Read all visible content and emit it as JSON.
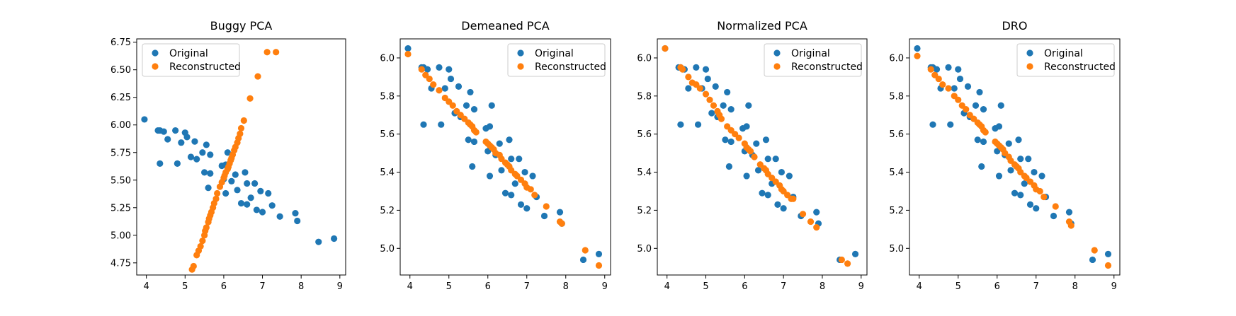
{
  "chart_data": [
    {
      "type": "scatter",
      "title": "Buggy PCA",
      "xlim": [
        3.75,
        9.15
      ],
      "ylim": [
        4.64,
        6.78
      ],
      "xticks": [
        4,
        5,
        6,
        7,
        8,
        9
      ],
      "yticks": [
        4.75,
        5.0,
        5.25,
        5.5,
        5.75,
        6.0,
        6.25,
        6.5,
        6.75
      ],
      "ytick_labels": [
        "4.75",
        "5.00",
        "5.25",
        "5.50",
        "5.75",
        "6.00",
        "6.25",
        "6.50",
        "6.75"
      ],
      "legend_position": "top-left",
      "series": [
        {
          "name": "Original",
          "color": "#1f77b4",
          "x": [
            3.95,
            4.3,
            4.35,
            4.45,
            4.55,
            4.75,
            4.35,
            4.8,
            4.9,
            5.05,
            5.0,
            5.25,
            5.45,
            5.55,
            5.15,
            5.3,
            5.65,
            5.5,
            5.6,
            5.65,
            5.95,
            6.05,
            6.1,
            6.0,
            6.2,
            6.3,
            6.35,
            6.45,
            6.55,
            6.6,
            6.6,
            6.7,
            6.8,
            6.85,
            6.95,
            7.0,
            7.15,
            7.25,
            7.45,
            7.85,
            7.9,
            8.45,
            8.85,
            6.05
          ],
          "y": [
            6.05,
            5.95,
            5.95,
            5.94,
            5.87,
            5.95,
            5.65,
            5.65,
            5.84,
            5.89,
            5.93,
            5.85,
            5.75,
            5.82,
            5.71,
            5.69,
            5.73,
            5.57,
            5.43,
            5.56,
            5.63,
            5.64,
            5.75,
            5.51,
            5.49,
            5.55,
            5.41,
            5.29,
            5.57,
            5.47,
            5.28,
            5.34,
            5.47,
            5.23,
            5.4,
            5.21,
            5.38,
            5.27,
            5.17,
            5.2,
            5.13,
            4.94,
            4.97,
            5.38
          ]
        },
        {
          "name": "Reconstructed",
          "color": "#ff7f0e",
          "x": [
            5.18,
            5.22,
            5.3,
            5.35,
            5.4,
            5.45,
            5.5,
            5.52,
            5.55,
            5.6,
            5.62,
            5.65,
            5.68,
            5.72,
            5.75,
            5.8,
            5.83,
            5.9,
            5.95,
            6.0,
            6.02,
            6.05,
            6.1,
            6.12,
            6.15,
            6.18,
            6.2,
            6.23,
            6.27,
            6.3,
            6.35,
            6.38,
            6.42,
            6.45,
            6.52,
            6.68,
            6.88,
            7.12,
            7.35
          ],
          "y": [
            4.69,
            4.72,
            4.82,
            4.86,
            4.9,
            4.95,
            5.0,
            5.04,
            5.07,
            5.12,
            5.15,
            5.18,
            5.21,
            5.25,
            5.29,
            5.33,
            5.38,
            5.44,
            5.48,
            5.52,
            5.54,
            5.57,
            5.6,
            5.62,
            5.65,
            5.68,
            5.7,
            5.73,
            5.77,
            5.8,
            5.84,
            5.88,
            5.92,
            5.97,
            6.04,
            6.24,
            6.44,
            6.66,
            6.66
          ]
        }
      ]
    },
    {
      "type": "scatter",
      "title": "Demeaned PCA",
      "xlim": [
        3.75,
        9.15
      ],
      "ylim": [
        4.86,
        6.1
      ],
      "xticks": [
        4,
        5,
        6,
        7,
        8,
        9
      ],
      "yticks": [
        5.0,
        5.2,
        5.4,
        5.6,
        5.8,
        6.0
      ],
      "ytick_labels": [
        "5.0",
        "5.2",
        "5.4",
        "5.6",
        "5.8",
        "6.0"
      ],
      "legend_position": "top-right",
      "series": [
        {
          "name": "Original",
          "color": "#1f77b4",
          "x": [
            3.95,
            4.3,
            4.35,
            4.45,
            4.55,
            4.75,
            4.35,
            4.8,
            4.9,
            5.05,
            5.0,
            5.25,
            5.45,
            5.55,
            5.15,
            5.3,
            5.65,
            5.5,
            5.6,
            5.65,
            5.95,
            6.05,
            6.1,
            6.0,
            6.2,
            6.3,
            6.35,
            6.45,
            6.55,
            6.6,
            6.6,
            6.7,
            6.8,
            6.85,
            6.95,
            7.0,
            7.15,
            7.25,
            7.45,
            7.85,
            7.9,
            8.45,
            8.85,
            6.05
          ],
          "y": [
            6.05,
            5.95,
            5.95,
            5.94,
            5.84,
            5.95,
            5.65,
            5.65,
            5.84,
            5.89,
            5.94,
            5.85,
            5.75,
            5.82,
            5.71,
            5.69,
            5.73,
            5.57,
            5.43,
            5.56,
            5.63,
            5.64,
            5.75,
            5.51,
            5.49,
            5.55,
            5.41,
            5.29,
            5.57,
            5.47,
            5.28,
            5.34,
            5.47,
            5.23,
            5.4,
            5.21,
            5.38,
            5.27,
            5.17,
            5.19,
            5.13,
            4.94,
            4.97,
            5.38
          ]
        },
        {
          "name": "Reconstructed",
          "color": "#ff7f0e",
          "x": [
            3.95,
            4.3,
            4.4,
            4.5,
            4.6,
            4.75,
            4.9,
            5.0,
            5.1,
            5.2,
            5.3,
            5.4,
            5.5,
            5.55,
            5.6,
            5.65,
            5.7,
            5.95,
            6.0,
            6.05,
            6.1,
            6.15,
            6.2,
            6.3,
            6.35,
            6.45,
            6.5,
            6.55,
            6.6,
            6.7,
            6.75,
            6.85,
            6.95,
            7.0,
            7.1,
            7.2,
            7.5,
            7.85,
            7.9,
            8.5,
            8.85
          ],
          "y": [
            6.02,
            5.94,
            5.91,
            5.89,
            5.86,
            5.83,
            5.79,
            5.77,
            5.75,
            5.72,
            5.7,
            5.68,
            5.66,
            5.65,
            5.64,
            5.62,
            5.61,
            5.56,
            5.55,
            5.54,
            5.53,
            5.52,
            5.5,
            5.49,
            5.47,
            5.45,
            5.44,
            5.43,
            5.41,
            5.39,
            5.38,
            5.36,
            5.34,
            5.32,
            5.31,
            5.28,
            5.22,
            5.14,
            5.13,
            4.99,
            4.91
          ]
        }
      ]
    },
    {
      "type": "scatter",
      "title": "Normalized PCA",
      "xlim": [
        3.75,
        9.15
      ],
      "ylim": [
        4.86,
        6.1
      ],
      "xticks": [
        4,
        5,
        6,
        7,
        8,
        9
      ],
      "yticks": [
        5.0,
        5.2,
        5.4,
        5.6,
        5.8,
        6.0
      ],
      "ytick_labels": [
        "5.0",
        "5.2",
        "5.4",
        "5.6",
        "5.8",
        "6.0"
      ],
      "legend_position": "top-right",
      "series": [
        {
          "name": "Original",
          "color": "#1f77b4",
          "x": [
            3.95,
            4.3,
            4.35,
            4.45,
            4.55,
            4.75,
            4.35,
            4.8,
            4.9,
            5.05,
            5.0,
            5.25,
            5.45,
            5.55,
            5.15,
            5.3,
            5.65,
            5.5,
            5.6,
            5.65,
            5.95,
            6.05,
            6.1,
            6.0,
            6.2,
            6.3,
            6.35,
            6.45,
            6.55,
            6.6,
            6.6,
            6.7,
            6.8,
            6.85,
            6.95,
            7.0,
            7.15,
            7.25,
            7.45,
            7.85,
            7.9,
            8.45,
            8.85,
            6.05
          ],
          "y": [
            6.05,
            5.95,
            5.95,
            5.94,
            5.84,
            5.95,
            5.65,
            5.65,
            5.84,
            5.89,
            5.94,
            5.85,
            5.75,
            5.82,
            5.71,
            5.69,
            5.73,
            5.57,
            5.43,
            5.56,
            5.63,
            5.64,
            5.75,
            5.51,
            5.49,
            5.55,
            5.41,
            5.29,
            5.57,
            5.47,
            5.28,
            5.34,
            5.47,
            5.23,
            5.4,
            5.21,
            5.38,
            5.27,
            5.17,
            5.19,
            5.13,
            4.94,
            4.97,
            5.38
          ]
        },
        {
          "name": "Reconstructed",
          "color": "#ff7f0e",
          "x": [
            3.95,
            4.35,
            4.4,
            4.55,
            4.65,
            4.75,
            4.85,
            5.0,
            5.1,
            5.2,
            5.3,
            5.35,
            5.4,
            5.55,
            5.65,
            5.75,
            5.85,
            6.0,
            6.05,
            6.1,
            6.15,
            6.25,
            6.4,
            6.5,
            6.55,
            6.6,
            6.7,
            6.8,
            6.9,
            6.95,
            7.0,
            7.1,
            7.2,
            7.25,
            7.5,
            7.7,
            7.85,
            8.5,
            8.65
          ],
          "y": [
            6.05,
            5.95,
            5.94,
            5.9,
            5.87,
            5.86,
            5.84,
            5.81,
            5.78,
            5.75,
            5.72,
            5.7,
            5.68,
            5.64,
            5.62,
            5.6,
            5.58,
            5.55,
            5.53,
            5.52,
            5.51,
            5.48,
            5.44,
            5.42,
            5.41,
            5.39,
            5.37,
            5.35,
            5.33,
            5.31,
            5.3,
            5.28,
            5.26,
            5.26,
            5.18,
            5.14,
            5.11,
            4.94,
            4.92
          ]
        }
      ]
    },
    {
      "type": "scatter",
      "title": "DRO",
      "xlim": [
        3.75,
        9.15
      ],
      "ylim": [
        4.86,
        6.1
      ],
      "xticks": [
        4,
        5,
        6,
        7,
        8,
        9
      ],
      "yticks": [
        5.0,
        5.2,
        5.4,
        5.6,
        5.8,
        6.0
      ],
      "ytick_labels": [
        "5.0",
        "5.2",
        "5.4",
        "5.6",
        "5.8",
        "6.0"
      ],
      "legend_position": "top-right",
      "series": [
        {
          "name": "Original",
          "color": "#1f77b4",
          "x": [
            3.95,
            4.3,
            4.35,
            4.45,
            4.55,
            4.75,
            4.35,
            4.8,
            4.9,
            5.05,
            5.0,
            5.25,
            5.45,
            5.55,
            5.15,
            5.3,
            5.65,
            5.5,
            5.6,
            5.65,
            5.95,
            6.05,
            6.1,
            6.0,
            6.2,
            6.3,
            6.35,
            6.45,
            6.55,
            6.6,
            6.6,
            6.7,
            6.8,
            6.85,
            6.95,
            7.0,
            7.15,
            7.25,
            7.45,
            7.85,
            7.9,
            8.45,
            8.85,
            6.05
          ],
          "y": [
            6.05,
            5.95,
            5.95,
            5.94,
            5.84,
            5.95,
            5.65,
            5.65,
            5.84,
            5.89,
            5.94,
            5.85,
            5.75,
            5.82,
            5.71,
            5.69,
            5.73,
            5.57,
            5.43,
            5.56,
            5.63,
            5.64,
            5.75,
            5.51,
            5.49,
            5.55,
            5.41,
            5.29,
            5.57,
            5.47,
            5.28,
            5.34,
            5.47,
            5.23,
            5.4,
            5.21,
            5.38,
            5.27,
            5.17,
            5.19,
            5.13,
            4.94,
            4.97,
            5.38
          ]
        },
        {
          "name": "Reconstructed",
          "color": "#ff7f0e",
          "x": [
            3.95,
            4.3,
            4.4,
            4.5,
            4.6,
            4.75,
            4.9,
            5.0,
            5.1,
            5.2,
            5.3,
            5.4,
            5.5,
            5.55,
            5.6,
            5.65,
            5.7,
            5.95,
            6.0,
            6.05,
            6.1,
            6.15,
            6.2,
            6.3,
            6.35,
            6.45,
            6.5,
            6.55,
            6.6,
            6.7,
            6.75,
            6.85,
            6.95,
            7.0,
            7.1,
            7.2,
            7.5,
            7.85,
            7.9,
            8.5,
            8.85
          ],
          "y": [
            6.01,
            5.94,
            5.91,
            5.89,
            5.86,
            5.84,
            5.8,
            5.78,
            5.75,
            5.73,
            5.7,
            5.68,
            5.66,
            5.65,
            5.64,
            5.62,
            5.61,
            5.56,
            5.55,
            5.54,
            5.53,
            5.52,
            5.5,
            5.48,
            5.46,
            5.44,
            5.43,
            5.42,
            5.4,
            5.38,
            5.37,
            5.35,
            5.33,
            5.31,
            5.3,
            5.27,
            5.22,
            5.14,
            5.12,
            4.99,
            4.91
          ]
        }
      ]
    }
  ]
}
